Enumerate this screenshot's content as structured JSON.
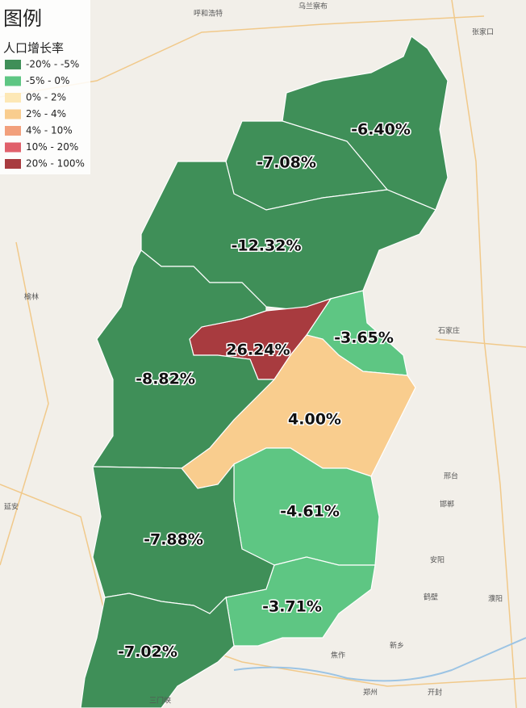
{
  "legend": {
    "title": "图例",
    "subtitle": "人口增长率",
    "items": [
      {
        "label": "-20% - -5%",
        "color": "#3f8f58"
      },
      {
        "label": "-5% - 0%",
        "color": "#5ec683"
      },
      {
        "label": "0% - 2%",
        "color": "#fde8b6"
      },
      {
        "label": "2% - 4%",
        "color": "#f9cd8e"
      },
      {
        "label": "4% - 10%",
        "color": "#f2a07c"
      },
      {
        "label": "10% - 20%",
        "color": "#e0606b"
      },
      {
        "label": "20% - 100%",
        "color": "#a83b3f"
      }
    ]
  },
  "regions": [
    {
      "label": "-6.40%",
      "color": "#3f8f58"
    },
    {
      "label": "-7.08%",
      "color": "#3f8f58"
    },
    {
      "label": "-12.32%",
      "color": "#3f8f58"
    },
    {
      "label": "-3.65%",
      "color": "#5ec683"
    },
    {
      "label": "26.24%",
      "color": "#a83b3f"
    },
    {
      "label": "4.00%",
      "color": "#f9cd8e"
    },
    {
      "label": "-8.82%",
      "color": "#3f8f58"
    },
    {
      "label": "-4.61%",
      "color": "#5ec683"
    },
    {
      "label": "-7.88%",
      "color": "#3f8f58"
    },
    {
      "label": "-3.71%",
      "color": "#5ec683"
    },
    {
      "label": "-7.02%",
      "color": "#3f8f58"
    }
  ],
  "cities": [
    "呼和浩特",
    "乌兰察布",
    "张家口",
    "榆林",
    "延安",
    "石家庄",
    "邢台",
    "邯郸",
    "安阳",
    "鹤壁",
    "濮阳",
    "新乡",
    "焦作",
    "郑州",
    "开封",
    "三门峡"
  ]
}
